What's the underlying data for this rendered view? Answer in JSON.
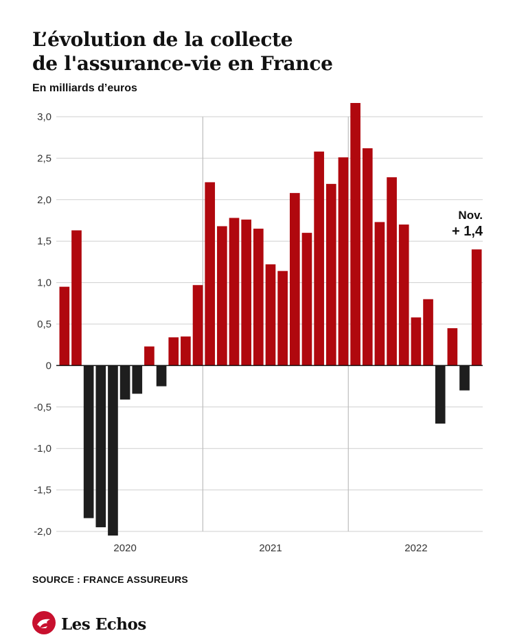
{
  "title_line1": "L’évolution de la collecte",
  "title_line2": "de l'assurance-vie en France",
  "subtitle": "En milliards d’euros",
  "source": "SOURCE : FRANCE ASSUREURS",
  "brand": {
    "name": "Les Echos",
    "logo_icon": "les-echos-logo-icon"
  },
  "colors": {
    "positive": "#b0080e",
    "negative": "#1e1e1e",
    "grid": "#cfcfcf",
    "divider": "#bdbdbd",
    "baseline": "#111111",
    "logo": "#c8102e"
  },
  "chart_data": {
    "type": "bar",
    "title": "L’évolution de la collecte de l'assurance-vie en France",
    "ylabel": "En milliards d’euros",
    "ylim": [
      -2.0,
      3.0
    ],
    "y_ticks": [
      3.0,
      2.5,
      2.0,
      1.5,
      1.0,
      0.5,
      0,
      -0.5,
      -1.0,
      -1.5,
      -2.0
    ],
    "y_tick_labels": [
      "3,0",
      "2,5",
      "2,0",
      "1,5",
      "1,0",
      "0,5",
      "0",
      "-0,5",
      "-1,0",
      "-1,5",
      "-2,0"
    ],
    "year_labels": [
      "2020",
      "2021",
      "2022"
    ],
    "grid": true,
    "values": [
      0.95,
      1.63,
      -1.84,
      -1.95,
      -2.05,
      -0.41,
      -0.34,
      0.23,
      -0.25,
      0.34,
      0.35,
      0.97,
      2.21,
      1.68,
      1.78,
      1.76,
      1.65,
      1.22,
      1.14,
      2.08,
      1.6,
      2.58,
      2.19,
      2.51,
      3.2,
      2.62,
      1.73,
      2.27,
      1.7,
      0.58,
      0.8,
      -0.7,
      0.45,
      -0.3,
      1.4
    ],
    "annotation": {
      "line1": "Nov.",
      "line2": "+ 1,4"
    }
  }
}
